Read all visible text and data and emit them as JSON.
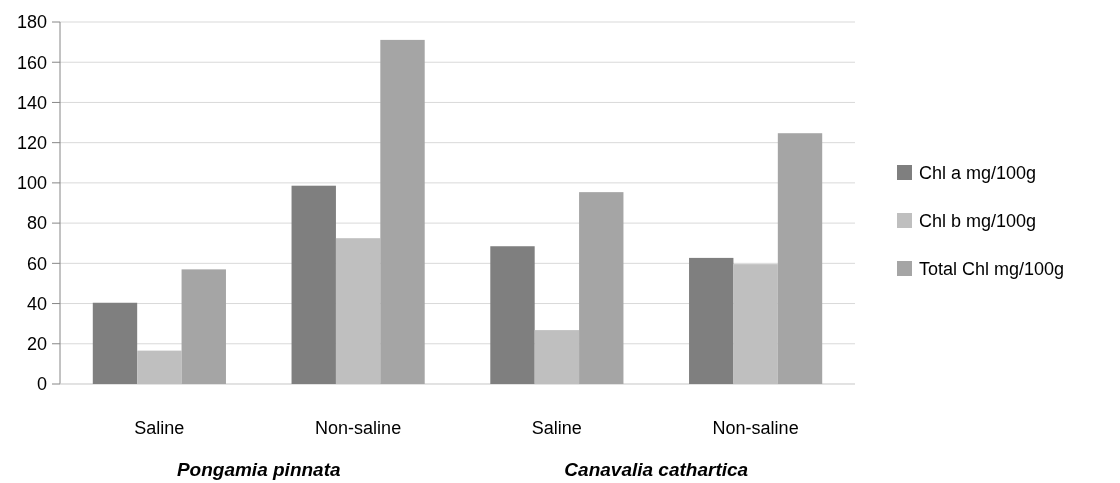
{
  "chart_data": {
    "type": "bar",
    "categories": [
      "Saline",
      "Non-saline",
      "Saline",
      "Non-saline"
    ],
    "series": [
      {
        "name": "Chl a mg/100g",
        "color": "#7f7f7f",
        "values": [
          40.4,
          98.6,
          68.5,
          62.7
        ]
      },
      {
        "name": "Chl b mg/100g",
        "color": "#bfbfbf",
        "values": [
          16.6,
          72.5,
          26.8,
          59.6
        ]
      },
      {
        "name": "Total Chl mg/100g",
        "color": "#a5a5a5",
        "values": [
          57,
          171.1,
          95.4,
          124.7
        ]
      }
    ],
    "ylim": [
      0,
      180
    ],
    "yticks": [
      0,
      20,
      40,
      60,
      80,
      100,
      120,
      140,
      160,
      180
    ],
    "grid": "y",
    "legend": "right",
    "annotations": [
      "Pongamia pinnata",
      "Canavalia cathartica"
    ]
  }
}
